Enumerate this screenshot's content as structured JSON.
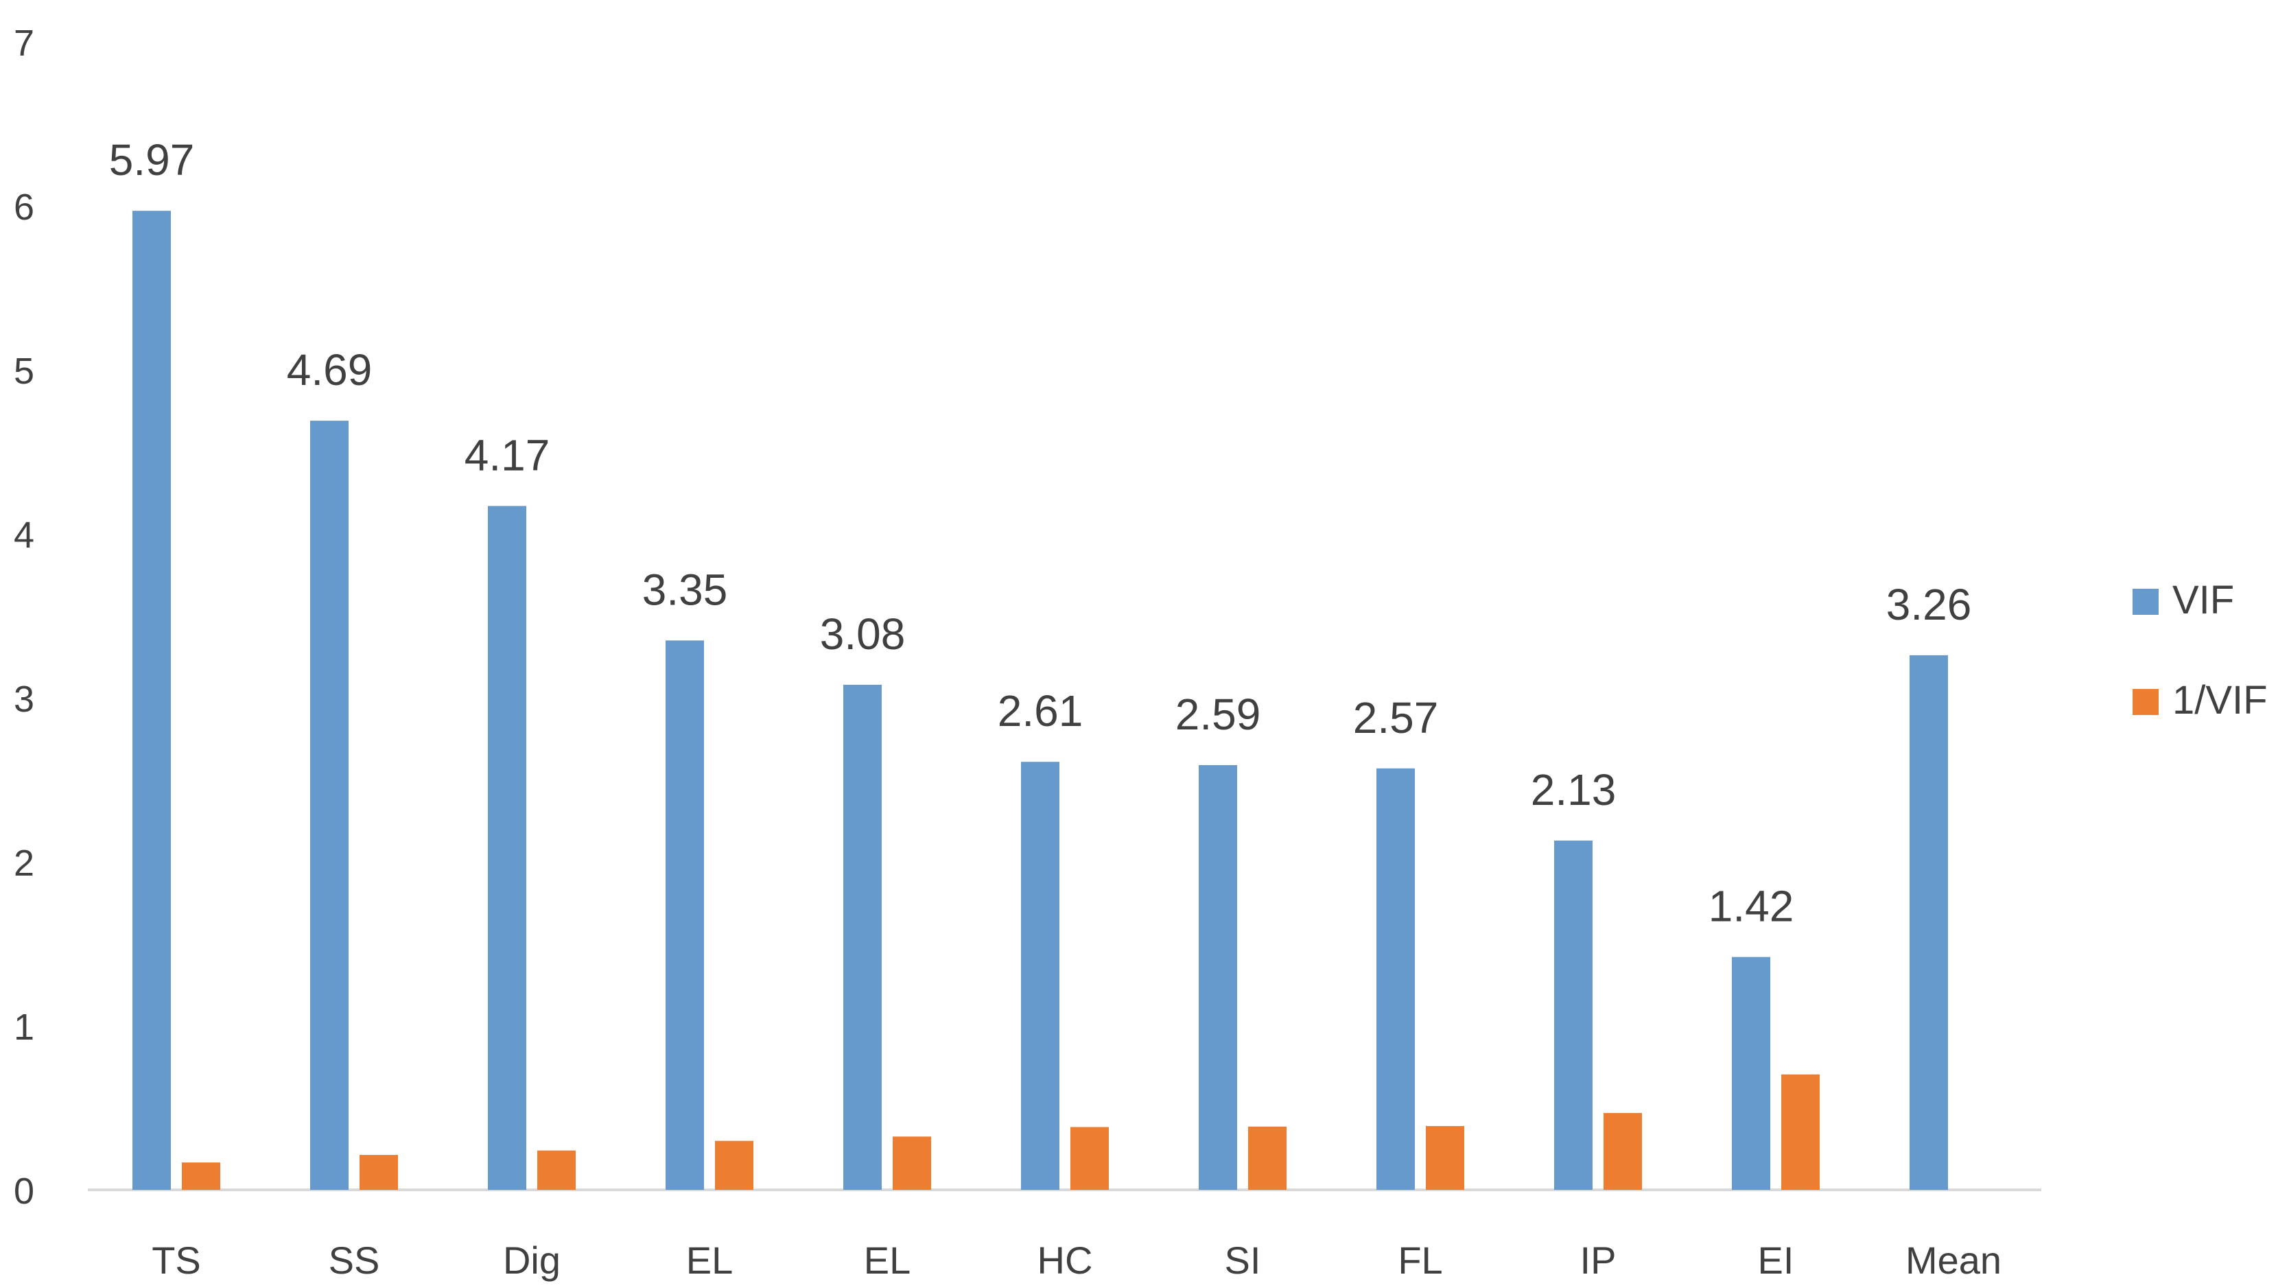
{
  "chart_data": {
    "type": "bar",
    "title": "",
    "xlabel": "",
    "ylabel": "",
    "ylim": [
      0,
      7
    ],
    "yticks": [
      0,
      1,
      2,
      3,
      4,
      5,
      6,
      7
    ],
    "grid": false,
    "legend_position": "right",
    "categories": [
      "TS",
      "SS",
      "Dig",
      "EL",
      "EL",
      "HC",
      "SI",
      "FL",
      "IP",
      "EI",
      "Mean"
    ],
    "series": [
      {
        "name": "VIF",
        "color": "#6699CC",
        "values": [
          5.97,
          4.69,
          4.17,
          3.35,
          3.08,
          2.61,
          2.59,
          2.57,
          2.13,
          1.42,
          3.26
        ],
        "data_labels": [
          "5.97",
          "4.69",
          "4.17",
          "3.35",
          "3.08",
          "2.61",
          "2.59",
          "2.57",
          "2.13",
          "1.42",
          "3.26"
        ]
      },
      {
        "name": "1/VIF",
        "color": "#ED7D31",
        "values": [
          0.167,
          0.213,
          0.24,
          0.299,
          0.325,
          0.383,
          0.386,
          0.389,
          0.469,
          0.704,
          null
        ]
      }
    ]
  }
}
